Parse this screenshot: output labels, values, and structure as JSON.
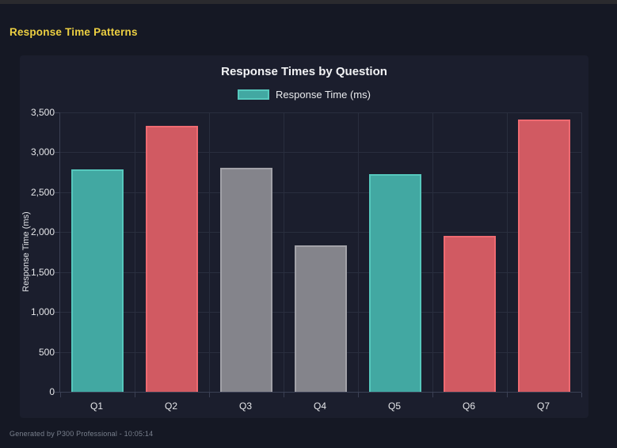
{
  "header": {
    "title": "Response Time Patterns"
  },
  "footer": {
    "text": "Generated by P300 Professional - 10:05:14"
  },
  "colors": {
    "accent_yellow": "#edd042",
    "page_background": "#151824",
    "panel_background": "#1b1e2d",
    "grid_line": "#292e3e",
    "teal": "#42a8a2",
    "teal_border": "#56c8bd",
    "red": "#d15a62",
    "red_border": "#ef6a71",
    "gray": "#84848b",
    "gray_border": "#a2a2a8"
  },
  "chart_data": {
    "type": "bar",
    "title": "Response Times by Question",
    "categories": [
      "Q1",
      "Q2",
      "Q3",
      "Q4",
      "Q5",
      "Q6",
      "Q7"
    ],
    "series": [
      {
        "name": "Response Time (ms)",
        "values": [
          2790,
          3330,
          2810,
          1835,
          2730,
          1950,
          3410
        ]
      }
    ],
    "series_color": {
      "fill": "#42a8a2",
      "border": "#56c8bd"
    },
    "bar_colors": [
      {
        "fill": "#42a8a2",
        "border": "#56c8bd"
      },
      {
        "fill": "#d15a62",
        "border": "#ef6a71"
      },
      {
        "fill": "#84848b",
        "border": "#a2a2a8"
      },
      {
        "fill": "#84848b",
        "border": "#a2a2a8"
      },
      {
        "fill": "#42a8a2",
        "border": "#56c8bd"
      },
      {
        "fill": "#d15a62",
        "border": "#ef6a71"
      },
      {
        "fill": "#d15a62",
        "border": "#ef6a71"
      }
    ],
    "xlabel": "",
    "ylabel": "Response Time (ms)",
    "ylim": [
      0,
      3500
    ],
    "ytick_step": 500,
    "ytick_labels": [
      "0",
      "500",
      "1,000",
      "1,500",
      "2,000",
      "2,500",
      "3,000",
      "3,500"
    ],
    "grid": true,
    "legend_position": "top"
  }
}
